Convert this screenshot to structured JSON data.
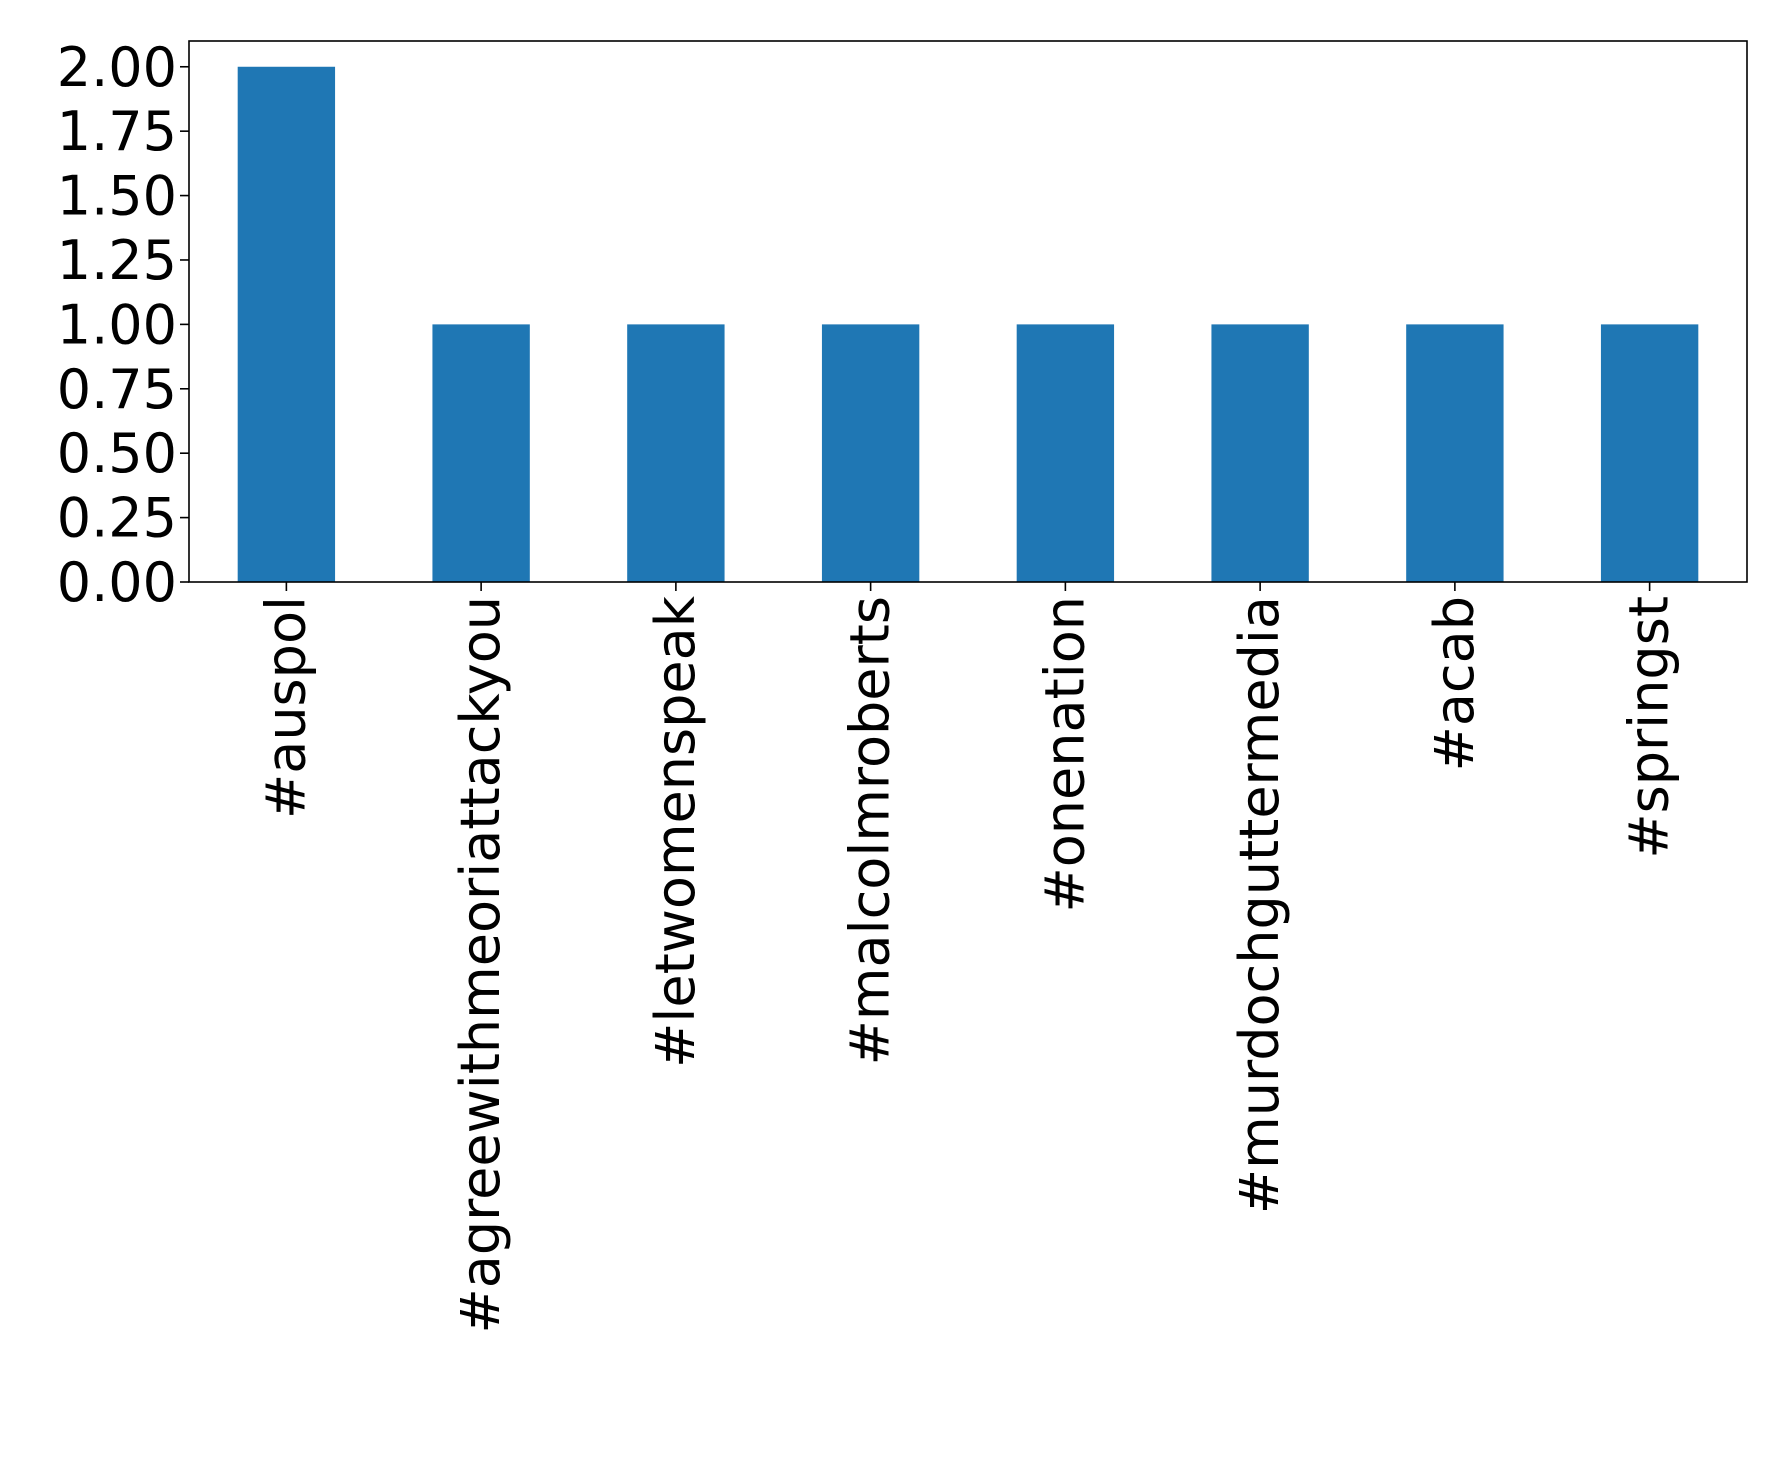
{
  "chart_data": {
    "type": "bar",
    "title": "",
    "xlabel": "",
    "ylabel": "",
    "categories": [
      "#auspol",
      "#agreewithmeoriattackyou",
      "#letwomenspeak",
      "#malcolmroberts",
      "#onenation",
      "#murdochguttermedia",
      "#acab",
      "#springst"
    ],
    "values": [
      2,
      1,
      1,
      1,
      1,
      1,
      1,
      1
    ],
    "ylim": [
      0,
      2.1
    ],
    "yticks": [
      "0.00",
      "0.25",
      "0.50",
      "0.75",
      "1.00",
      "1.25",
      "1.50",
      "1.75",
      "2.00"
    ],
    "ytick_values": [
      0,
      0.25,
      0.5,
      0.75,
      1.0,
      1.25,
      1.5,
      1.75,
      2.0
    ],
    "bar_color": "#1f77b4",
    "grid": false,
    "legend": "none",
    "xtick_rotation": "vertical"
  }
}
